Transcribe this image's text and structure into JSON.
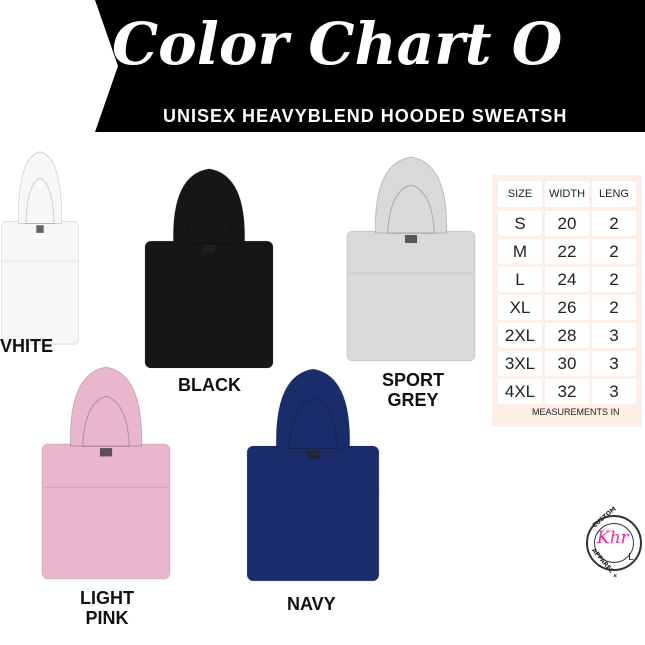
{
  "header": {
    "title": "Color Chart O",
    "subtitle": "UNISEX HEAVYBLEND HOODED SWEATSH"
  },
  "colors": [
    {
      "name": "WHITE",
      "label": "VHITE",
      "hex": "#f7f7f7"
    },
    {
      "name": "BLACK",
      "label": "BLACK",
      "hex": "#161616"
    },
    {
      "name": "SPORT GREY",
      "label_lines": [
        "SPORT",
        "GREY"
      ],
      "hex": "#d9d9db"
    },
    {
      "name": "LIGHT PINK",
      "label_lines": [
        "LIGHT",
        "PINK"
      ],
      "hex": "#e9b6cd"
    },
    {
      "name": "NAVY",
      "label": "NAVY",
      "hex": "#1b2c6b"
    }
  ],
  "size_table": {
    "headers": [
      "SIZE",
      "WIDTH",
      "LENG"
    ],
    "rows": [
      [
        "S",
        "20",
        "2"
      ],
      [
        "M",
        "22",
        "2"
      ],
      [
        "L",
        "24",
        "2"
      ],
      [
        "XL",
        "26",
        "2"
      ],
      [
        "2XL",
        "28",
        "3"
      ],
      [
        "3XL",
        "30",
        "3"
      ],
      [
        "4XL",
        "32",
        "3"
      ]
    ],
    "footnote": "MEASUREMENTS IN"
  },
  "logo": {
    "script": "Khr",
    "sub": "L",
    "arc_top": "CUSTOM",
    "arc_bottom": "APPAREL +",
    "accent": "#f0259a"
  }
}
